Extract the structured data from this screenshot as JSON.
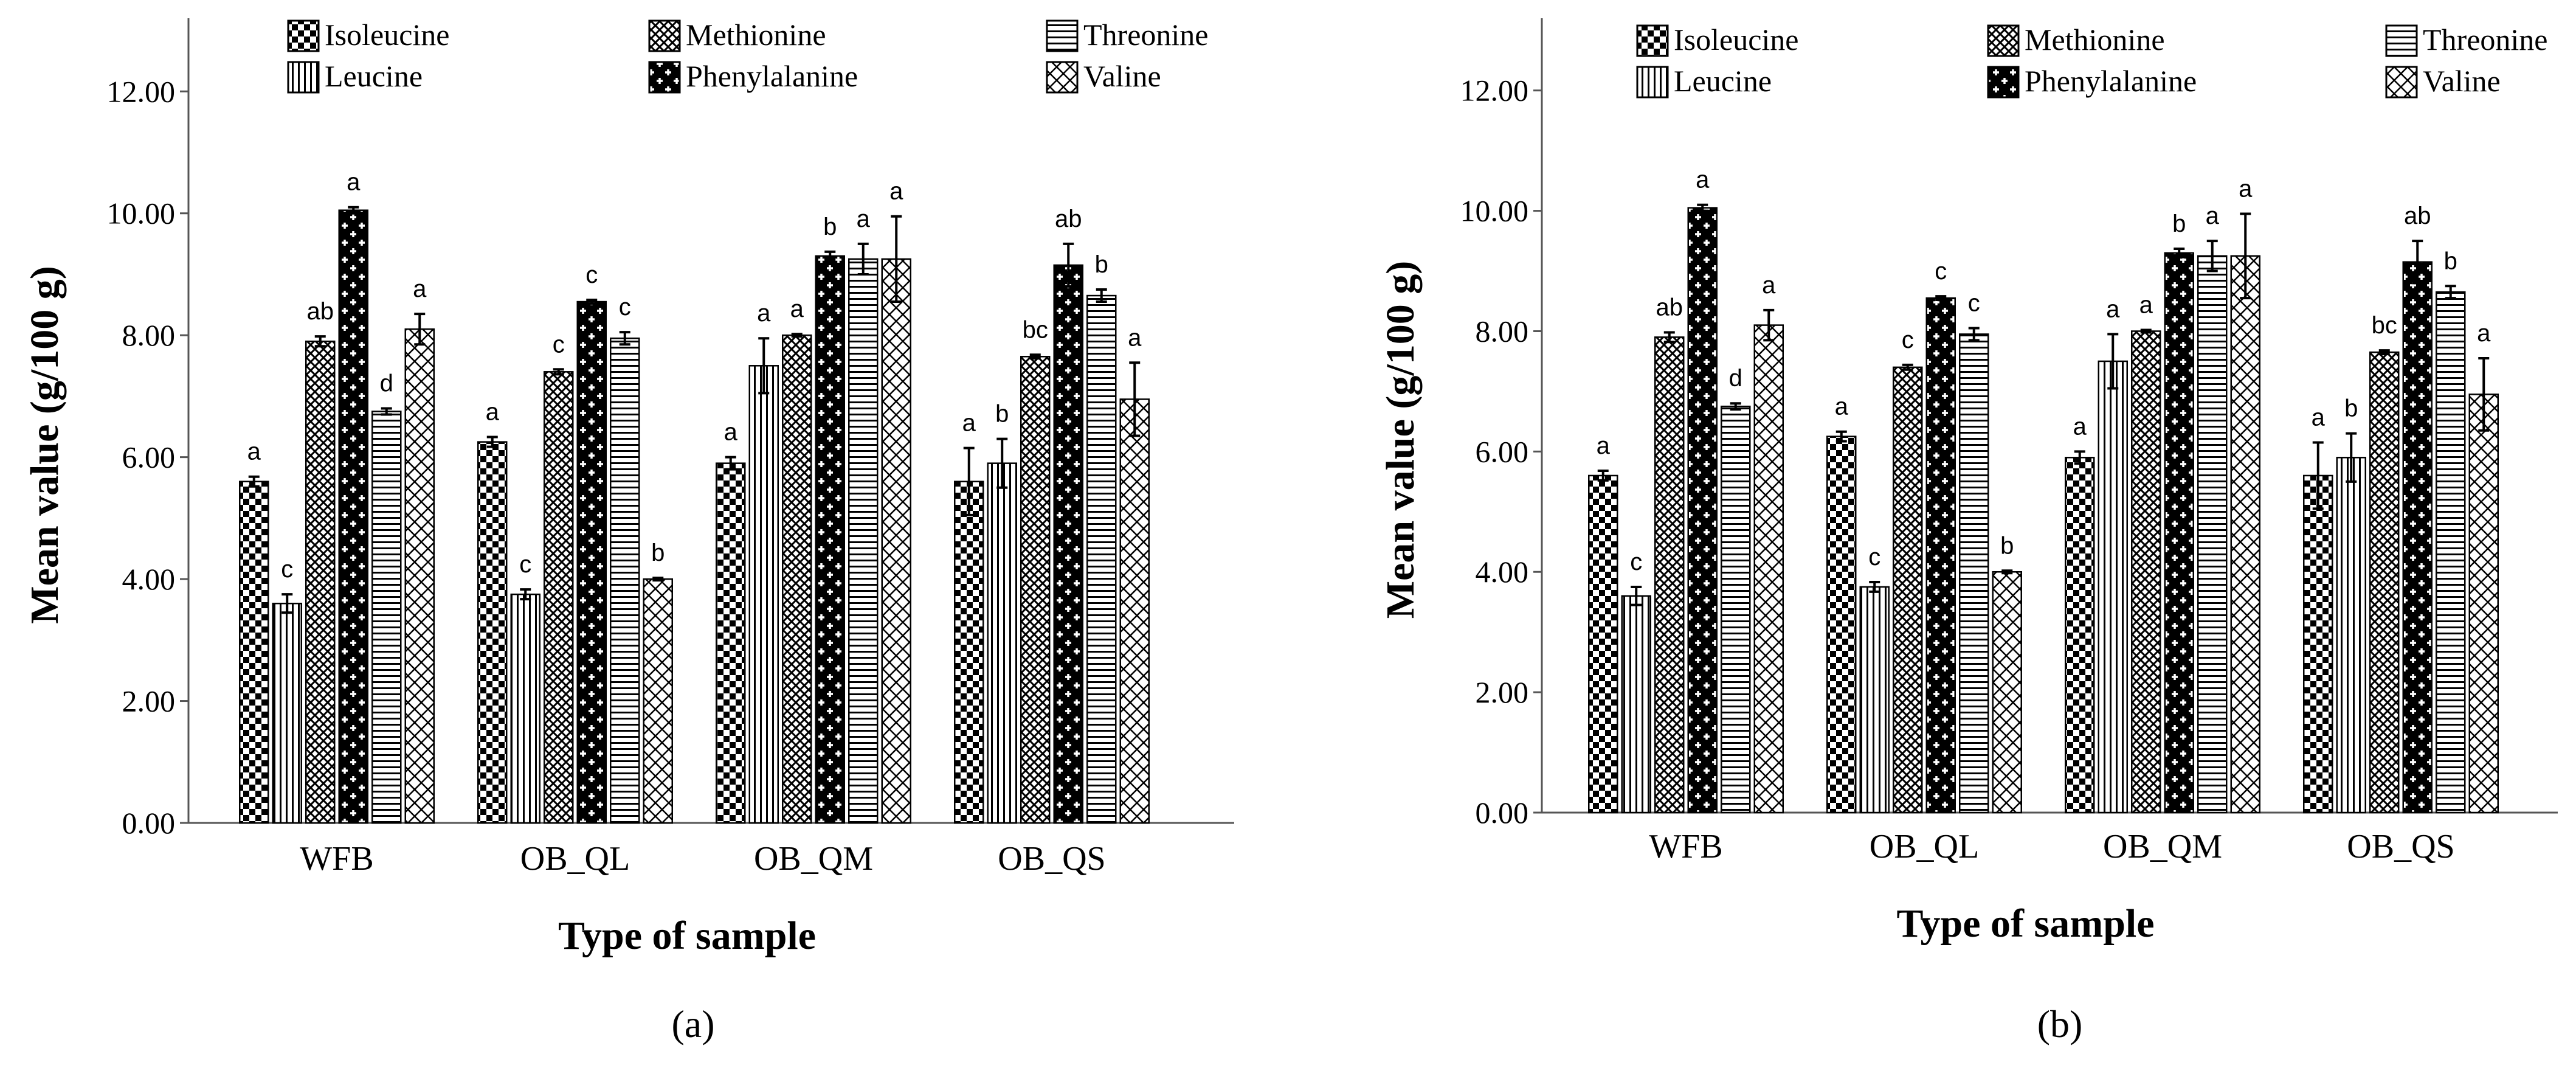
{
  "chart_data": [
    {
      "type": "bar",
      "panel_label": "(a)",
      "title": "",
      "xlabel": "Type of sample",
      "ylabel": "Mean value (g/100 g)",
      "ylim": [
        0,
        13.2
      ],
      "yticks": [
        "0.00",
        "2.00",
        "4.00",
        "6.00",
        "8.00",
        "10.00",
        "12.00"
      ],
      "grid": false,
      "legend_position": "top",
      "categories": [
        "WFB",
        "OB_QL",
        "OB_QM",
        "OB_QS"
      ],
      "series": [
        {
          "name": "Isoleucine",
          "pattern": "checker",
          "values": [
            5.6,
            6.25,
            5.9,
            5.6
          ],
          "errors": [
            0.08,
            0.08,
            0.1,
            0.55
          ],
          "letters": [
            "a",
            "a",
            "a",
            "a"
          ]
        },
        {
          "name": "Leucine",
          "pattern": "vlines",
          "values": [
            3.6,
            3.75,
            7.5,
            5.9
          ],
          "errors": [
            0.15,
            0.08,
            0.45,
            0.4
          ],
          "letters": [
            "c",
            "c",
            "a",
            "b"
          ]
        },
        {
          "name": "Methionine",
          "pattern": "diamond",
          "values": [
            7.9,
            7.4,
            8.0,
            7.65
          ],
          "errors": [
            0.08,
            0.04,
            0.02,
            0.03
          ],
          "letters": [
            "ab",
            "c",
            "a",
            "bc"
          ]
        },
        {
          "name": "Phenylalanine",
          "pattern": "plus",
          "values": [
            10.05,
            8.55,
            9.3,
            9.15
          ],
          "errors": [
            0.05,
            0.03,
            0.07,
            0.35
          ],
          "letters": [
            "a",
            "c",
            "b",
            "ab"
          ]
        },
        {
          "name": "Threonine",
          "pattern": "hlines",
          "values": [
            6.75,
            7.95,
            9.25,
            8.65
          ],
          "errors": [
            0.05,
            0.1,
            0.25,
            0.1
          ],
          "letters": [
            "d",
            "c",
            "a",
            "b"
          ]
        },
        {
          "name": "Valine",
          "pattern": "cross",
          "values": [
            8.1,
            4.0,
            9.25,
            6.95
          ],
          "errors": [
            0.25,
            0.02,
            0.7,
            0.6
          ],
          "letters": [
            "a",
            "b",
            "a",
            "a"
          ]
        }
      ]
    },
    {
      "type": "bar",
      "panel_label": "(b)",
      "title": "",
      "xlabel": "Type of sample",
      "ylabel": "Mean value (g/100 g)",
      "ylim": [
        0,
        13.2
      ],
      "yticks": [
        "0.00",
        "2.00",
        "4.00",
        "6.00",
        "8.00",
        "10.00",
        "12.00"
      ],
      "grid": false,
      "legend_position": "top",
      "categories": [
        "WFB",
        "OB_QL",
        "OB_QM",
        "OB_QS"
      ],
      "series": [
        {
          "name": "Isoleucine",
          "pattern": "checker",
          "values": [
            5.6,
            6.25,
            5.9,
            5.6
          ],
          "errors": [
            0.08,
            0.08,
            0.1,
            0.55
          ],
          "letters": [
            "a",
            "a",
            "a",
            "a"
          ]
        },
        {
          "name": "Leucine",
          "pattern": "vlines",
          "values": [
            3.6,
            3.75,
            7.5,
            5.9
          ],
          "errors": [
            0.15,
            0.08,
            0.45,
            0.4
          ],
          "letters": [
            "c",
            "c",
            "a",
            "b"
          ]
        },
        {
          "name": "Methionine",
          "pattern": "diamond",
          "values": [
            7.9,
            7.4,
            8.0,
            7.65
          ],
          "errors": [
            0.08,
            0.04,
            0.02,
            0.03
          ],
          "letters": [
            "ab",
            "c",
            "a",
            "bc"
          ]
        },
        {
          "name": "Phenylalanine",
          "pattern": "plus",
          "values": [
            10.05,
            8.55,
            9.3,
            9.15
          ],
          "errors": [
            0.05,
            0.03,
            0.07,
            0.35
          ],
          "letters": [
            "a",
            "c",
            "b",
            "ab"
          ]
        },
        {
          "name": "Threonine",
          "pattern": "hlines",
          "values": [
            6.75,
            7.95,
            9.25,
            8.65
          ],
          "errors": [
            0.05,
            0.1,
            0.25,
            0.1
          ],
          "letters": [
            "d",
            "c",
            "a",
            "b"
          ]
        },
        {
          "name": "Valine",
          "pattern": "cross",
          "values": [
            8.1,
            4.0,
            9.25,
            6.95
          ],
          "errors": [
            0.25,
            0.02,
            0.7,
            0.6
          ],
          "letters": [
            "a",
            "b",
            "a",
            "a"
          ]
        }
      ]
    }
  ],
  "colors": {
    "ink": "#000000",
    "axis": "#555555",
    "background": "#ffffff"
  }
}
